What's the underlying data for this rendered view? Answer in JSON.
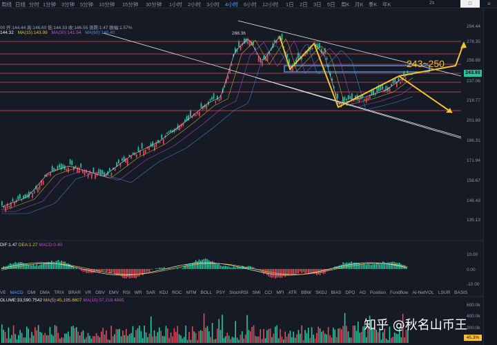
{
  "toolbar": {
    "timeframes": [
      "周线",
      "日线",
      "分时",
      "1分钟",
      "3分钟",
      "5分钟",
      "10分钟",
      "15分钟",
      "30分钟",
      "1小时",
      "2小时",
      "3小时",
      "4小时",
      "6小时",
      "12小时",
      "1日",
      "2日",
      "3日",
      "5日",
      "周K",
      "月K",
      "季K",
      "年K"
    ],
    "active": "4小时",
    "page_num": "2s",
    "flag_label": "□",
    "menu_icon": "≡"
  },
  "ohlc": {
    "text": "00  开:144.44  高:146.60  低:144.33  收:146.55  涨跌:1.47  振幅:1.57%"
  },
  "ma": {
    "ma5": "144.32",
    "ma15": "MA(15):143.99",
    "ma30": "MA(30):141.54",
    "ma60": "MA(60):140.40"
  },
  "price_axis": [
    "294.44",
    "278.35",
    "256.88",
    "243.93",
    "237.06",
    "218.77",
    "201.89",
    "186.31",
    "171.94",
    "158.67",
    "146.43",
    "135.13"
  ],
  "current_price": "243.93",
  "peak_label": "288.36",
  "target_label": "243~250",
  "macd": {
    "dif": "DIF:1.47",
    "dea": "DEA:1.27",
    "macd": "MACD:0.40",
    "axis": [
      "10.00",
      "0.00",
      "-10.00"
    ]
  },
  "tabs": [
    "VE",
    "MACD",
    "DMI",
    "DMA",
    "TRIX",
    "BRAR",
    "VR",
    "OBV",
    "EMV",
    "RSI",
    "WR",
    "SAR",
    "KDJ",
    "ROC",
    "MTM",
    "BOLL",
    "PSY",
    "StochRSI",
    "SMI",
    "CCI",
    "MFI",
    "ATR",
    "BBW",
    "SKDJ",
    "BIAS",
    "DPO",
    "AO",
    "Position",
    "Fundflow",
    "AI-NetVOL",
    "LSUR",
    "BASIS"
  ],
  "active_tab": "MACD",
  "volume": {
    "label": "OLUME:33,590.7542",
    "ma5": "MA(5):45,195.8607",
    "ma10": "MA(10):57,218.4865",
    "axis": [
      "600.0k",
      "400.0k",
      "200.0k"
    ]
  },
  "pct_tag": "45.3%",
  "watermark": "知乎 @秋名山币王",
  "colors": {
    "bg": "#161a25",
    "up": "#26c6a0",
    "down": "#e04a5a",
    "arrow": "#f2c230",
    "box": "#4aa3ff",
    "ma5": "#f0f0f0",
    "ma15": "#e0c040",
    "ma30": "#c050d0",
    "ma60": "#4a90e2"
  }
}
